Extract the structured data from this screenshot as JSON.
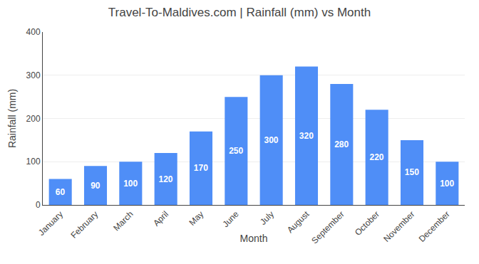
{
  "chart_data": {
    "type": "bar",
    "title": "Travel-To-Maldives.com | Rainfall (mm) vs Month",
    "xlabel": "Month",
    "ylabel": "Rainfall (mm)",
    "categories": [
      "January",
      "February",
      "March",
      "April",
      "May",
      "June",
      "July",
      "August",
      "September",
      "October",
      "November",
      "December"
    ],
    "values": [
      60,
      90,
      100,
      120,
      170,
      250,
      300,
      320,
      280,
      220,
      150,
      100
    ],
    "color": "#4F8EF7",
    "ylim": [
      0,
      400
    ],
    "yticks": [
      0,
      100,
      200,
      300,
      400
    ],
    "grid": true,
    "data_labels": true
  }
}
